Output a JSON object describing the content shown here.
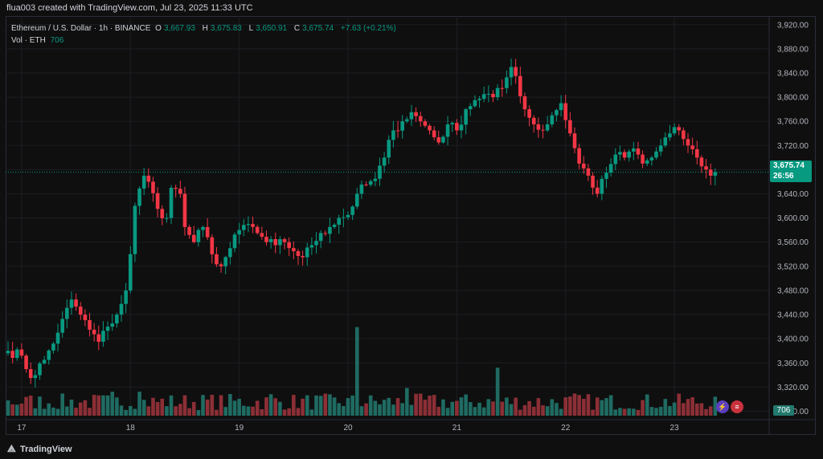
{
  "header": {
    "created_by": "flua003 created with TradingView.com, Jul 23, 2025 11:33 UTC"
  },
  "legend": {
    "symbol": "Ethereum / U.S. Dollar · 1h · BINANCE",
    "o_label": "O",
    "o": "3,667.93",
    "h_label": "H",
    "h": "3,675.83",
    "l_label": "L",
    "l": "3,650.91",
    "c_label": "C",
    "c": "3,675.74",
    "change": "+7.63 (+0.21%)",
    "vol_label": "Vol · ETH",
    "vol": "706"
  },
  "price_tag": {
    "price": "3,675.74",
    "countdown": "26:56"
  },
  "volume_tag": "706",
  "colors": {
    "up": "#089981",
    "down": "#f23645",
    "up_vol": "#1f6b62",
    "down_vol": "#8c2f36",
    "grid": "#1c1e24",
    "bg": "#0f0f0f"
  },
  "footer": {
    "brand": "TradingView",
    "brand_icon": "tradingview-logo-icon"
  },
  "event_icons": [
    "lightning-icon",
    "us-flag-icon"
  ],
  "chart_data": {
    "type": "candlestick",
    "title": "",
    "xlabel": "",
    "ylabel": "",
    "ylim": [
      3270,
      3925
    ],
    "y_ticks": [
      "3,920.00",
      "3,880.00",
      "3,840.00",
      "3,800.00",
      "3,760.00",
      "3,720.00",
      "3,680.00",
      "3,640.00",
      "3,600.00",
      "3,560.00",
      "3,520.00",
      "3,480.00",
      "3,440.00",
      "3,400.00",
      "3,360.00",
      "3,320.00",
      "3,280.00"
    ],
    "y_tick_values": [
      3920,
      3880,
      3840,
      3800,
      3760,
      3720,
      3680,
      3640,
      3600,
      3560,
      3520,
      3480,
      3440,
      3400,
      3360,
      3320,
      3280
    ],
    "x_ticks": [
      "17",
      "18",
      "19",
      "20",
      "21",
      "22",
      "23"
    ],
    "x_tick_bar_index": [
      3,
      27,
      51,
      75,
      99,
      123,
      147
    ],
    "last_price": 3675.74,
    "anchors": [
      [
        0,
        3380
      ],
      [
        3,
        3372
      ],
      [
        5,
        3335
      ],
      [
        8,
        3365
      ],
      [
        11,
        3410
      ],
      [
        14,
        3465
      ],
      [
        16,
        3440
      ],
      [
        18,
        3415
      ],
      [
        20,
        3395
      ],
      [
        22,
        3420
      ],
      [
        24,
        3440
      ],
      [
        26,
        3480
      ],
      [
        27,
        3540
      ],
      [
        28,
        3620
      ],
      [
        30,
        3670
      ],
      [
        31,
        3660
      ],
      [
        33,
        3615
      ],
      [
        35,
        3600
      ],
      [
        36,
        3650
      ],
      [
        38,
        3640
      ],
      [
        39,
        3585
      ],
      [
        41,
        3560
      ],
      [
        43,
        3585
      ],
      [
        45,
        3540
      ],
      [
        47,
        3520
      ],
      [
        49,
        3550
      ],
      [
        51,
        3580
      ],
      [
        53,
        3590
      ],
      [
        55,
        3575
      ],
      [
        57,
        3560
      ],
      [
        59,
        3555
      ],
      [
        61,
        3560
      ],
      [
        63,
        3545
      ],
      [
        65,
        3535
      ],
      [
        67,
        3555
      ],
      [
        69,
        3575
      ],
      [
        71,
        3585
      ],
      [
        73,
        3600
      ],
      [
        75,
        3605
      ],
      [
        77,
        3640
      ],
      [
        79,
        3655
      ],
      [
        81,
        3665
      ],
      [
        83,
        3700
      ],
      [
        85,
        3745
      ],
      [
        87,
        3760
      ],
      [
        89,
        3775
      ],
      [
        91,
        3760
      ],
      [
        93,
        3745
      ],
      [
        95,
        3725
      ],
      [
        97,
        3755
      ],
      [
        99,
        3745
      ],
      [
        101,
        3780
      ],
      [
        103,
        3795
      ],
      [
        105,
        3805
      ],
      [
        107,
        3800
      ],
      [
        109,
        3815
      ],
      [
        111,
        3850
      ],
      [
        112,
        3835
      ],
      [
        114,
        3780
      ],
      [
        116,
        3755
      ],
      [
        118,
        3745
      ],
      [
        120,
        3770
      ],
      [
        122,
        3790
      ],
      [
        124,
        3740
      ],
      [
        126,
        3690
      ],
      [
        128,
        3670
      ],
      [
        130,
        3640
      ],
      [
        132,
        3675
      ],
      [
        134,
        3705
      ],
      [
        136,
        3700
      ],
      [
        138,
        3715
      ],
      [
        140,
        3690
      ],
      [
        142,
        3700
      ],
      [
        144,
        3720
      ],
      [
        146,
        3740
      ],
      [
        148,
        3745
      ],
      [
        150,
        3720
      ],
      [
        152,
        3700
      ],
      [
        154,
        3680
      ],
      [
        155,
        3670
      ],
      [
        156,
        3676
      ]
    ],
    "volume_max": 2500,
    "volume_anchor_spikes": [
      [
        77,
        2400
      ],
      [
        108,
        1300
      ],
      [
        88,
        750
      ],
      [
        23,
        650
      ],
      [
        29,
        650
      ],
      [
        125,
        600
      ],
      [
        58,
        580
      ]
    ],
    "series": [
      {
        "name": "",
        "values": "see anchors (hourly close in USD)"
      }
    ]
  }
}
